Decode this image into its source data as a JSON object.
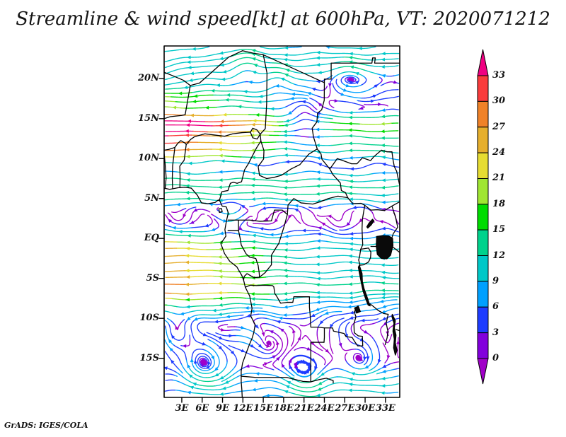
{
  "header": {
    "title": "Streamline & wind speed[kt] at 600hPa, VT: 2020071212"
  },
  "footer": {
    "credit": "GrADS: IGES/COLA"
  },
  "axes": {
    "lat_ticks": [
      {
        "label": "20N",
        "value": 20
      },
      {
        "label": "15N",
        "value": 15
      },
      {
        "label": "10N",
        "value": 10
      },
      {
        "label": "5N",
        "value": 5
      },
      {
        "label": "EQ",
        "value": 0
      },
      {
        "label": "5S",
        "value": -5
      },
      {
        "label": "10S",
        "value": -10
      },
      {
        "label": "15S",
        "value": -15
      }
    ],
    "lon_ticks": [
      {
        "label": "3E",
        "value": 3
      },
      {
        "label": "6E",
        "value": 6
      },
      {
        "label": "9E",
        "value": 9
      },
      {
        "label": "12E",
        "value": 12
      },
      {
        "label": "15E",
        "value": 15
      },
      {
        "label": "18E",
        "value": 18
      },
      {
        "label": "21E",
        "value": 21
      },
      {
        "label": "24E",
        "value": 24
      },
      {
        "label": "27E",
        "value": 27
      },
      {
        "label": "30E",
        "value": 30
      },
      {
        "label": "33E",
        "value": 33
      }
    ]
  },
  "chart_data": {
    "type": "streamline-map",
    "title": "Streamline & wind speed[kt] at 600hPa, VT: 2020071212",
    "variable": "wind speed",
    "units": "kt",
    "pressure_level": "600hPa",
    "valid_time": "2020071212",
    "lon_range": [
      0.4,
      35.1
    ],
    "lat_range": [
      -19.9,
      24.1
    ],
    "grid": "off",
    "colorbar": {
      "levels": [
        0,
        3,
        6,
        9,
        12,
        15,
        18,
        21,
        24,
        27,
        30,
        33
      ],
      "colors_low_to_high": [
        "#A000C8",
        "#8200DC",
        "#1E3CFF",
        "#00A0FF",
        "#00C8C8",
        "#00D28C",
        "#00DC00",
        "#A0E632",
        "#E6DC32",
        "#E6AF2D",
        "#F08228",
        "#FA3C3C",
        "#F00082"
      ]
    },
    "flow_features": {
      "description": "Easterly jet ~12.5N up to 33kt (strongest west), moderate easterlies near the equator and 5S, weak cyclonic eddies 19-22N, calm cols near (21E,14.5N) and the Cameroon coast, eastward band ~18N east of 24E, weak swirling flow with eddies south of 10S",
      "zonal_bands": [
        {
          "lat": 12.5,
          "width": 3.0,
          "u0": -13,
          "uWest": -19,
          "fadeLon": 20
        },
        {
          "lat": 16.0,
          "width": 2.6,
          "u0": -8,
          "uWest": -9,
          "fadeLon": 18
        },
        {
          "lat": 21.5,
          "width": 4.0,
          "u0": -10,
          "uWest": 0,
          "fadeLon": 1
        },
        {
          "lat": 6.3,
          "width": 2.4,
          "u0": -12,
          "uWest": -2,
          "fadeLon": 30
        },
        {
          "lat": -3.2,
          "width": 4.2,
          "u0": -11,
          "uWest": -16,
          "fadeLon": 20
        },
        {
          "lat": -8.2,
          "width": 2.6,
          "u0": -6,
          "uWest": -9,
          "fadeLon": 20
        },
        {
          "lat": -18.5,
          "width": 2.6,
          "u0": -9,
          "uWest": 4,
          "fadeLon": 20
        },
        {
          "lat": 18.2,
          "width": 2.0,
          "u0": 0,
          "uWest": 0,
          "fadeLon": 1,
          "lonStart": 21,
          "ramp": 6,
          "uEast": 15
        }
      ],
      "calm_patches": [
        {
          "lon": 21.0,
          "lat": 14.6,
          "r": 3.0,
          "u": 13
        },
        {
          "lon": 10.2,
          "lat": 3.2,
          "r": 2.0,
          "u": 11
        },
        {
          "lon": 12.8,
          "lat": -11.8,
          "r": 2.4,
          "u": 9
        }
      ],
      "vortices": [
        {
          "lon": 12.5,
          "lat": 21.3,
          "r": 2.3,
          "s": 9
        },
        {
          "lon": 17.3,
          "lat": 19.8,
          "r": 2.0,
          "s": 8
        },
        {
          "lon": 28.0,
          "lat": 20.0,
          "r": 2.5,
          "s": 8
        },
        {
          "lon": 21.0,
          "lat": 14.8,
          "r": 2.2,
          "s": 6
        },
        {
          "lon": 10.2,
          "lat": 3.0,
          "r": 1.8,
          "s": 6
        },
        {
          "lon": 2.5,
          "lat": -11.5,
          "r": 2.6,
          "s": -14
        },
        {
          "lon": 6.5,
          "lat": -15.8,
          "r": 3.2,
          "s": -15
        },
        {
          "lon": 21.3,
          "lat": -17.3,
          "r": 2.4,
          "s": -13
        },
        {
          "lon": 29.5,
          "lat": -15.0,
          "r": 2.4,
          "s": -9
        },
        {
          "lon": 15.5,
          "lat": -13.5,
          "r": 2.2,
          "s": 8
        }
      ],
      "v_patches": [
        {
          "lon": 27,
          "lat": -12,
          "rx": 6,
          "ry": 4,
          "v": -2.5
        },
        {
          "lon": 3,
          "lat": 22,
          "rx": 5,
          "ry": 3,
          "v": -2
        }
      ]
    }
  }
}
